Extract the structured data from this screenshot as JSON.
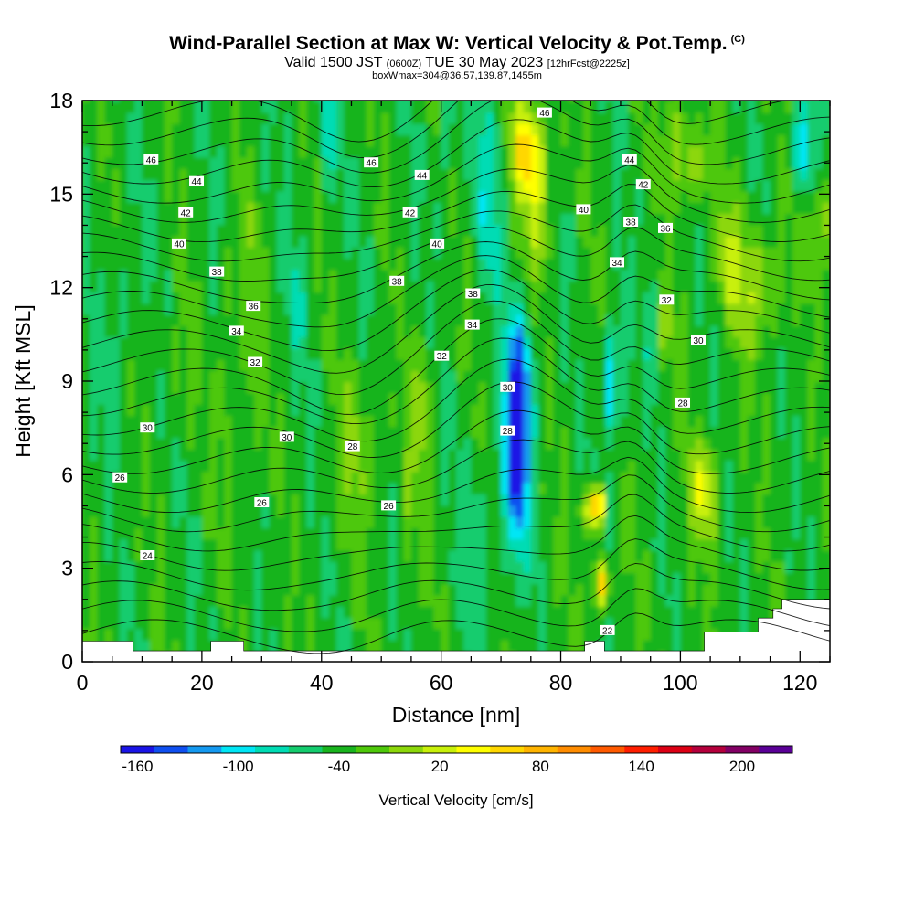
{
  "title": {
    "main": "Wind-Parallel Section at Max W: Vertical Velocity & Pot.Temp.",
    "copyright": "(C)",
    "valid_prefix": "Valid 1500 JST",
    "valid_utc": "(0600Z)",
    "valid_date": "TUE 30 May 2023",
    "forecast": "[12hrFcst@2225z]",
    "box_info": "boxWmax=304@36.57,139.87,1455m"
  },
  "chart_data": {
    "type": "heatmap",
    "xlabel": "Distance [nm]",
    "ylabel": "Height [Kft MSL]",
    "xlim": [
      0,
      125
    ],
    "ylim": [
      0,
      18
    ],
    "x_ticks": [
      "0",
      "20",
      "40",
      "60",
      "80",
      "100",
      "120"
    ],
    "y_ticks": [
      "0",
      "3",
      "6",
      "9",
      "12",
      "15",
      "18"
    ],
    "colorbar": {
      "label": "Vertical Velocity [cm/s]",
      "tick_labels": [
        "-160",
        "-100",
        "-40",
        "20",
        "80",
        "140",
        "200"
      ],
      "colors": [
        "#1a14e6",
        "#0f4ff0",
        "#1499f0",
        "#00e6f5",
        "#00dcb4",
        "#14cc6e",
        "#19b41e",
        "#4ec80a",
        "#8cd70a",
        "#c8f00a",
        "#ffff00",
        "#ffd700",
        "#ffb400",
        "#ff8c00",
        "#ff5a00",
        "#ff1e00",
        "#dc0014",
        "#b4003c",
        "#820064",
        "#5a0096"
      ]
    },
    "contour_labels": [
      {
        "x": 11.5,
        "y": 16.1,
        "text": "46"
      },
      {
        "x": 48.3,
        "y": 16.0,
        "text": "46"
      },
      {
        "x": 77.3,
        "y": 17.6,
        "text": "46"
      },
      {
        "x": 19.1,
        "y": 15.4,
        "text": "44"
      },
      {
        "x": 56.8,
        "y": 15.6,
        "text": "44"
      },
      {
        "x": 91.5,
        "y": 16.1,
        "text": "44"
      },
      {
        "x": 17.3,
        "y": 14.4,
        "text": "42"
      },
      {
        "x": 54.8,
        "y": 14.4,
        "text": "42"
      },
      {
        "x": 93.8,
        "y": 15.3,
        "text": "42"
      },
      {
        "x": 16.2,
        "y": 13.4,
        "text": "40"
      },
      {
        "x": 59.3,
        "y": 13.4,
        "text": "40"
      },
      {
        "x": 83.8,
        "y": 14.5,
        "text": "40"
      },
      {
        "x": 22.5,
        "y": 12.5,
        "text": "38"
      },
      {
        "x": 52.6,
        "y": 12.2,
        "text": "38"
      },
      {
        "x": 65.3,
        "y": 11.8,
        "text": "38"
      },
      {
        "x": 91.7,
        "y": 14.1,
        "text": "38"
      },
      {
        "x": 97.5,
        "y": 13.9,
        "text": "36"
      },
      {
        "x": 28.6,
        "y": 11.4,
        "text": "36"
      },
      {
        "x": 25.8,
        "y": 10.6,
        "text": "34"
      },
      {
        "x": 65.2,
        "y": 10.8,
        "text": "34"
      },
      {
        "x": 89.4,
        "y": 12.8,
        "text": "34"
      },
      {
        "x": 28.9,
        "y": 9.6,
        "text": "32"
      },
      {
        "x": 60.1,
        "y": 9.8,
        "text": "32"
      },
      {
        "x": 97.7,
        "y": 11.6,
        "text": "32"
      },
      {
        "x": 10.9,
        "y": 7.5,
        "text": "30"
      },
      {
        "x": 34.2,
        "y": 7.2,
        "text": "30"
      },
      {
        "x": 71.1,
        "y": 8.8,
        "text": "30"
      },
      {
        "x": 103.0,
        "y": 10.3,
        "text": "30"
      },
      {
        "x": 45.2,
        "y": 6.9,
        "text": "28"
      },
      {
        "x": 71.1,
        "y": 7.4,
        "text": "28"
      },
      {
        "x": 100.4,
        "y": 8.3,
        "text": "28"
      },
      {
        "x": 6.3,
        "y": 5.9,
        "text": "26"
      },
      {
        "x": 30.0,
        "y": 5.1,
        "text": "26"
      },
      {
        "x": 51.2,
        "y": 5.0,
        "text": "26"
      },
      {
        "x": 10.9,
        "y": 3.4,
        "text": "24"
      },
      {
        "x": 87.8,
        "y": 1.0,
        "text": "22"
      }
    ]
  }
}
